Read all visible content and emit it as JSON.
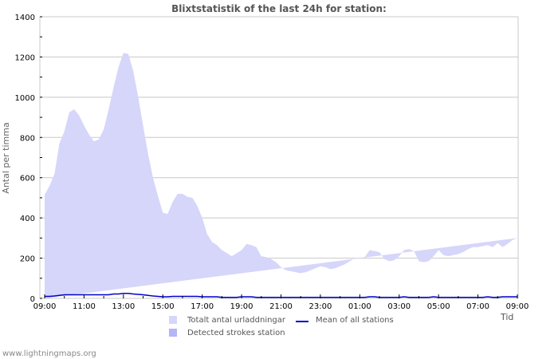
{
  "chart_data": {
    "type": "area",
    "title": "Blixtstatistik of the last 24h for station:",
    "xlabel": "Tid",
    "ylabel": "Antal per timma",
    "ylim": [
      0,
      1400
    ],
    "yticks": [
      0,
      200,
      400,
      600,
      800,
      1000,
      1200,
      1400
    ],
    "xticks": [
      "09:00",
      "11:00",
      "13:00",
      "15:00",
      "17:00",
      "19:00",
      "21:00",
      "23:00",
      "01:00",
      "03:00",
      "05:00",
      "07:00",
      "09:00"
    ],
    "grid": true,
    "legend_position": "bottom",
    "x_hours": [
      0,
      0.25,
      0.5,
      0.75,
      1,
      1.25,
      1.5,
      1.75,
      2,
      2.25,
      2.5,
      2.75,
      3,
      3.25,
      3.5,
      3.75,
      4,
      4.25,
      4.5,
      4.75,
      5,
      5.25,
      5.5,
      5.75,
      6,
      6.25,
      6.5,
      6.75,
      7,
      7.25,
      7.5,
      7.75,
      8,
      8.25,
      8.5,
      8.75,
      9,
      9.25,
      9.5,
      9.75,
      10,
      10.25,
      10.5,
      10.75,
      11,
      11.25,
      11.5,
      11.75,
      12,
      12.25,
      12.5,
      12.75,
      13,
      13.25,
      13.5,
      13.75,
      14,
      14.25,
      14.5,
      14.75,
      15,
      15.25,
      15.5,
      15.75,
      16,
      16.25,
      16.5,
      16.75,
      17,
      17.25,
      17.5,
      17.75,
      18,
      18.25,
      18.5,
      18.75,
      19,
      19.25,
      19.5,
      19.75,
      20,
      20.25,
      20.5,
      20.75,
      21,
      21.25,
      21.5,
      21.75,
      22,
      22.25,
      22.5,
      22.75,
      23,
      23.25,
      23.5,
      23.75,
      24
    ],
    "series": [
      {
        "name": "Totalt antal urladdningar",
        "color": "#d6d6fb",
        "values": [
          515,
          560,
          620,
          770,
          830,
          925,
          940,
          910,
          860,
          815,
          780,
          790,
          840,
          940,
          1050,
          1150,
          1220,
          1215,
          1130,
          1000,
          860,
          720,
          600,
          510,
          425,
          420,
          480,
          520,
          520,
          505,
          500,
          460,
          400,
          320,
          280,
          265,
          240,
          225,
          210,
          225,
          240,
          270,
          265,
          255,
          210,
          205,
          195,
          180,
          155,
          140,
          135,
          130,
          125,
          130,
          140,
          150,
          160,
          155,
          145,
          150,
          160,
          170,
          185,
          200,
          200,
          205,
          240,
          235,
          230,
          195,
          185,
          190,
          210,
          240,
          245,
          235,
          185,
          180,
          185,
          210,
          240,
          215,
          210,
          215,
          220,
          230,
          245,
          255,
          255,
          260,
          265,
          255,
          275,
          255,
          270,
          290,
          300,
          310,
          320
        ]
      },
      {
        "name": "Mean of all stations",
        "color": "#0000cc",
        "values": [
          10,
          10,
          12,
          15,
          18,
          18,
          18,
          18,
          18,
          18,
          18,
          18,
          18,
          18,
          22,
          22,
          25,
          25,
          22,
          20,
          18,
          15,
          12,
          10,
          8,
          8,
          10,
          10,
          10,
          10,
          10,
          10,
          8,
          8,
          8,
          8,
          5,
          5,
          5,
          5,
          8,
          8,
          8,
          5,
          5,
          5,
          5,
          5,
          5,
          5,
          5,
          5,
          5,
          5,
          5,
          5,
          5,
          5,
          5,
          5,
          5,
          5,
          5,
          5,
          5,
          5,
          8,
          8,
          5,
          5,
          5,
          5,
          5,
          8,
          5,
          5,
          5,
          5,
          5,
          8,
          5,
          5,
          5,
          5,
          5,
          5,
          5,
          5,
          5,
          5,
          8,
          5,
          5,
          8,
          8,
          8,
          8,
          8,
          8
        ]
      },
      {
        "name": "Detected strokes station",
        "color": "#b4b4f8",
        "values": []
      }
    ]
  },
  "legend": {
    "total_label": "Totalt antal urladdningar",
    "mean_label": "Mean of all stations",
    "station_label": "Detected strokes station"
  },
  "axis": {
    "y_title": "Antal per timma",
    "x_title": "Tid"
  },
  "footer": {
    "site": "www.lightningmaps.org"
  }
}
